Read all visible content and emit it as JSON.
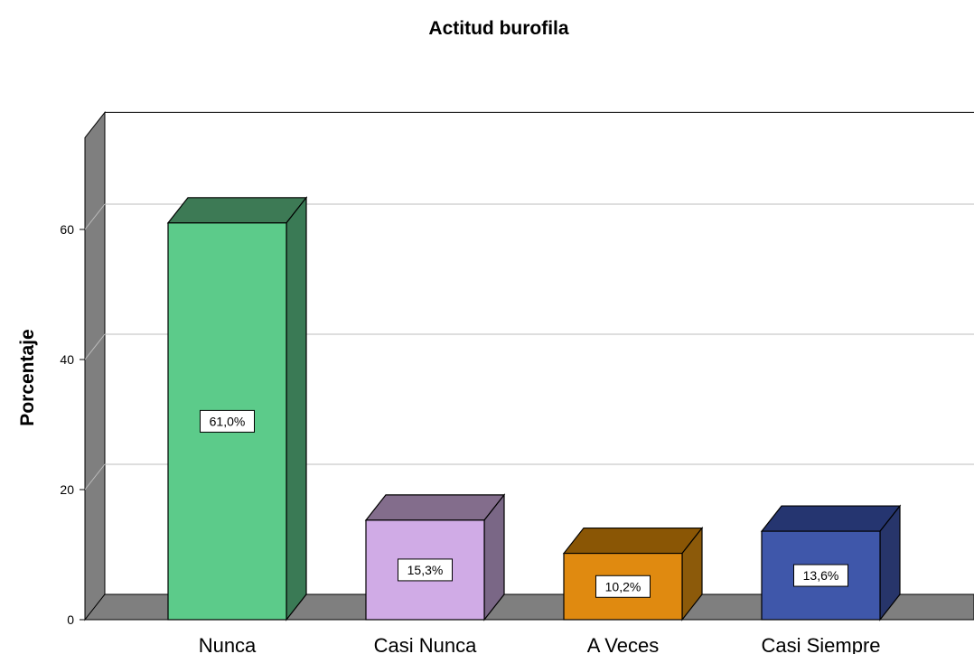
{
  "chart_data": {
    "type": "bar",
    "title": "Actitud burofila",
    "xlabel": "",
    "ylabel": "Porcentaje",
    "categories": [
      "Nunca",
      "Casi Nunca",
      "A Veces",
      "Casi Siempre"
    ],
    "values": [
      61.0,
      15.3,
      10.2,
      13.6
    ],
    "data_labels": [
      "61,0%",
      "15,3%",
      "10,2%",
      "13,6%"
    ],
    "ylim": [
      0,
      78
    ],
    "yticks": [
      0,
      20,
      40,
      60
    ],
    "grid": true,
    "legend": "none",
    "style": "3d",
    "colors": {
      "front": [
        "#5ccb8a",
        "#d0abe6",
        "#e08a10",
        "#3f57aa"
      ],
      "top": [
        "#3d7a55",
        "#836d8c",
        "#8a5605",
        "#253570"
      ],
      "side": [
        "#3a7a55",
        "#7a6786",
        "#8c5a0a",
        "#27356a"
      ],
      "wall": "#7f7f7f",
      "gridline": "#bdbdbd"
    }
  }
}
